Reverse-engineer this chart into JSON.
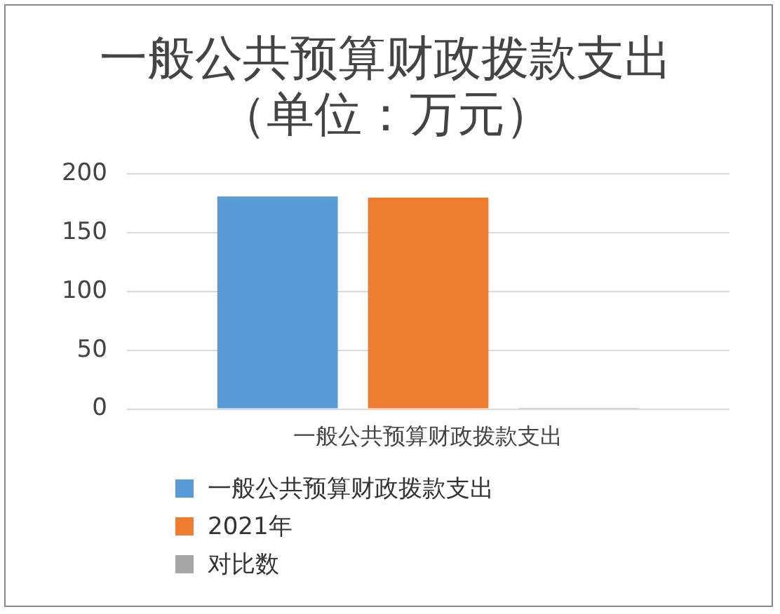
{
  "chart_data": {
    "type": "bar",
    "title": "一般公共预算财政拨款支出（单位：万元）",
    "categories": [
      "一般公共预算财政拨款支出"
    ],
    "series": [
      {
        "name": "一般公共预算财政拨款支出",
        "color": "#5b9bd5",
        "values": [
          181
        ]
      },
      {
        "name": "2021年",
        "color": "#ed7d31",
        "values": [
          180
        ]
      },
      {
        "name": "对比数",
        "color": "#a5a5a5",
        "values": [
          1
        ]
      }
    ],
    "ylim": [
      0,
      200
    ],
    "yticks": [
      0,
      50,
      100,
      150,
      200
    ],
    "grid": "y",
    "legend": "bottom"
  }
}
